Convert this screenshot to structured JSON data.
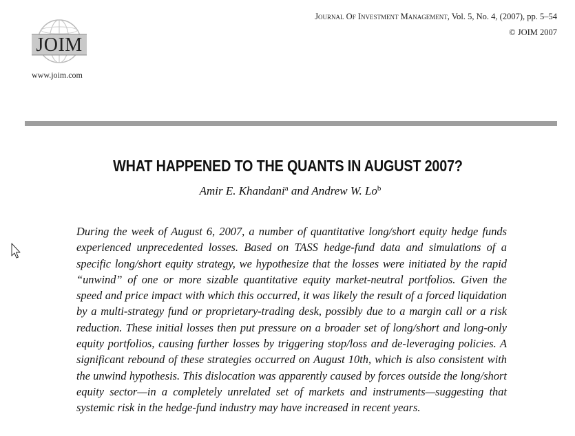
{
  "logo": {
    "text": "JOIM",
    "url": "www.joim.com"
  },
  "journal": {
    "name": "Journal Of Investment Management",
    "issue": ", Vol. 5, No. 4, (2007), pp. 5–54",
    "copyright": "© JOIM 2007"
  },
  "paper": {
    "title": "WHAT HAPPENED TO THE QUANTS IN AUGUST 2007?",
    "author1": "Amir E. Khandani",
    "author1_mark": "a",
    "connector": " and ",
    "author2": "Andrew W. Lo",
    "author2_mark": "b",
    "abstract": "During the week of August 6, 2007, a number of quantitative long/short equity hedge funds experienced unprecedented losses. Based on TASS hedge-fund data and simulations of a specific long/short equity strategy, we hypothesize that the losses were initiated by the rapid “unwind” of one or more sizable quantitative equity market-neutral portfolios. Given the speed and price impact with which this occurred, it was likely the result of a forced liquidation by a multi-strategy fund or proprietary-trading desk, possibly due to a margin call or a risk reduction. These initial losses then put pressure on a broader set of long/short and long-only equity portfolios, causing further losses by triggering stop/loss and de-leveraging policies. A significant rebound of these strategies occurred on August 10th, which is also consistent with the unwind hypothesis. This dislocation was apparently caused by forces outside the long/short equity sector—in a completely unrelated set of markets and instruments—suggesting that systemic risk in the hedge-fund industry may have increased in recent years."
  },
  "cursor": {
    "icon": "arrow-cursor-icon"
  }
}
